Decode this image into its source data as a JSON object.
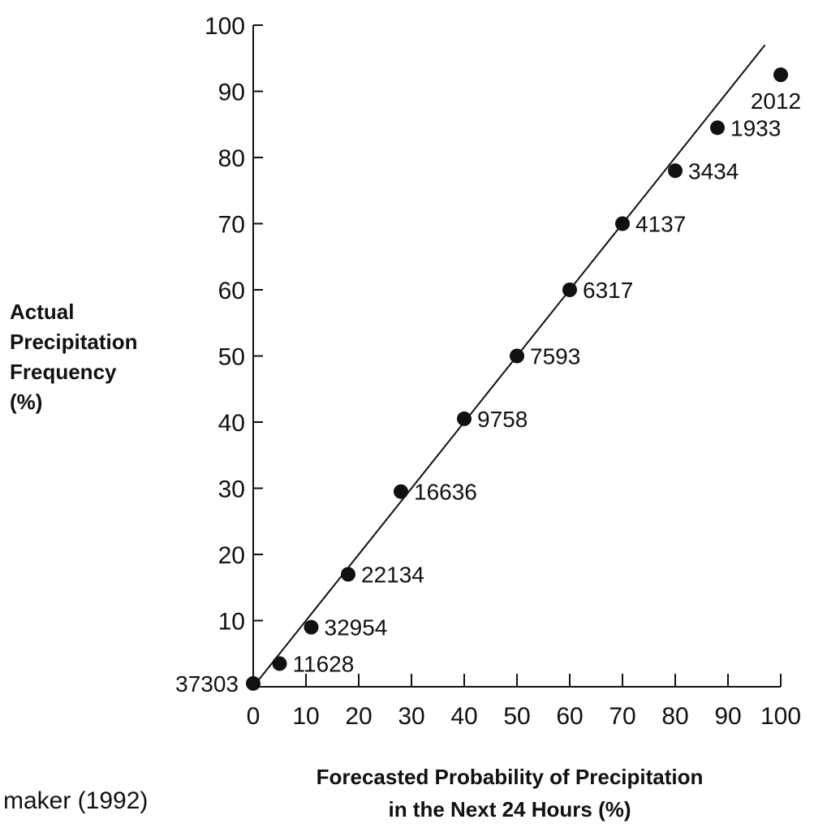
{
  "chart_data": {
    "type": "scatter",
    "title": "",
    "xlabel": [
      "Forecasted Probability of Precipitation",
      "in the Next 24 Hours (%)"
    ],
    "ylabel": [
      "Actual",
      "Precipitation",
      "Frequency",
      "(%)"
    ],
    "xlim": [
      0,
      100
    ],
    "ylim": [
      0,
      100
    ],
    "xticks": [
      0,
      10,
      20,
      30,
      40,
      50,
      60,
      70,
      80,
      90,
      100
    ],
    "yticks": [
      10,
      20,
      30,
      40,
      50,
      60,
      70,
      80,
      90,
      100
    ],
    "reference_line": {
      "x": [
        0,
        97
      ],
      "y": [
        0,
        97
      ]
    },
    "points": [
      {
        "x": 0,
        "y": 0.5,
        "label": "37303"
      },
      {
        "x": 5,
        "y": 3.5,
        "label": "11628"
      },
      {
        "x": 11,
        "y": 9,
        "label": "32954"
      },
      {
        "x": 18,
        "y": 17,
        "label": "22134"
      },
      {
        "x": 28,
        "y": 29.5,
        "label": "16636"
      },
      {
        "x": 40,
        "y": 40.5,
        "label": "9758"
      },
      {
        "x": 50,
        "y": 50,
        "label": "7593"
      },
      {
        "x": 60,
        "y": 60,
        "label": "6317"
      },
      {
        "x": 70,
        "y": 70,
        "label": "4137"
      },
      {
        "x": 80,
        "y": 78,
        "label": "3434"
      },
      {
        "x": 88,
        "y": 84.5,
        "label": "1933"
      },
      {
        "x": 100,
        "y": 92.5,
        "label": "2012"
      }
    ]
  },
  "credit": "maker (1992)"
}
